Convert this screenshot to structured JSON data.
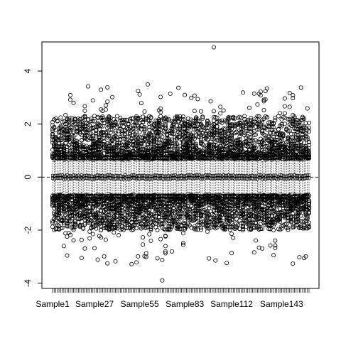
{
  "chart_data": {
    "type": "boxplot",
    "title": "",
    "xlabel": "",
    "ylabel": "",
    "n_samples": 160,
    "x_tick_labels": [
      {
        "index": 1,
        "label": "Sample1"
      },
      {
        "index": 27,
        "label": "Sample27"
      },
      {
        "index": 55,
        "label": "Sample55"
      },
      {
        "index": 83,
        "label": "Sample83"
      },
      {
        "index": 112,
        "label": "Sample112"
      },
      {
        "index": 143,
        "label": "Sample143"
      }
    ],
    "y_ticks": [
      -4,
      -2,
      0,
      2,
      4
    ],
    "ylim": [
      -4.2,
      5.1
    ],
    "reference_line": {
      "y": 0,
      "style": "dashed"
    },
    "box_summary_typical": {
      "median": 0.0,
      "q1": -0.1,
      "q3": 0.1,
      "whisker_low": -0.65,
      "whisker_high": 0.65
    },
    "outlier_range_typical": {
      "upper": [
        0.7,
        2.3
      ],
      "lower": [
        -2.0,
        -0.7
      ]
    },
    "outlier_extremes": {
      "max": 4.9,
      "min": -3.9
    },
    "grid": false,
    "legend": "none"
  }
}
